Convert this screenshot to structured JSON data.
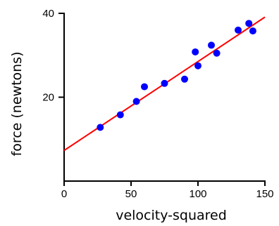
{
  "chart_data": {
    "type": "scatter",
    "xlabel": "velocity-squared",
    "ylabel": "force (newtons)",
    "xlim": [
      0,
      150
    ],
    "ylim": [
      0,
      40
    ],
    "x_ticks": [
      0,
      50,
      100,
      150
    ],
    "y_ticks": [
      20,
      40
    ],
    "x_tick_labels": [
      "0",
      "50",
      "100",
      "150"
    ],
    "y_tick_labels": [
      "20",
      "40"
    ],
    "points": [
      {
        "x": 27,
        "y": 12.8
      },
      {
        "x": 42,
        "y": 15.8
      },
      {
        "x": 54,
        "y": 19.0
      },
      {
        "x": 60,
        "y": 22.5
      },
      {
        "x": 75,
        "y": 23.3
      },
      {
        "x": 90,
        "y": 24.3
      },
      {
        "x": 98,
        "y": 30.8
      },
      {
        "x": 100,
        "y": 27.5
      },
      {
        "x": 110,
        "y": 32.4
      },
      {
        "x": 114,
        "y": 30.5
      },
      {
        "x": 130,
        "y": 36.0
      },
      {
        "x": 138,
        "y": 37.6
      },
      {
        "x": 141,
        "y": 35.8
      }
    ],
    "fit_line": {
      "intercept": 7.3,
      "slope": 0.212
    },
    "grid": false,
    "point_color": "#0000ff",
    "line_color": "#ff0000"
  }
}
